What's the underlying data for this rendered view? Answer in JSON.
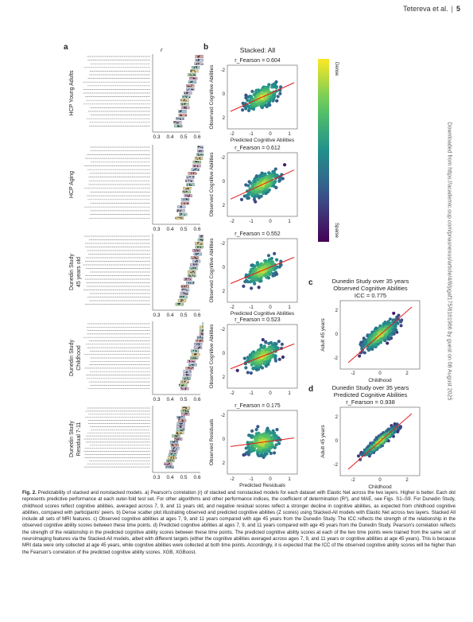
{
  "header": {
    "author": "Tetereva et al.",
    "page": "5"
  },
  "side_note": "Downloaded from https://academic.oup.com/pnasnexus/article/4/8/pgaf175/8161966 by guest on 08 August 2025",
  "panel_labels": {
    "a": "a",
    "b": "b",
    "c": "c",
    "d": "d"
  },
  "panel_a": {
    "xlabel_top": "r_Fearson",
    "ticks": [
      "0.3",
      "0.4",
      "0.5",
      "0.6"
    ],
    "groups": [
      "HCP Young Adults",
      "HCP Aging",
      "Dunedin Study\n45 years old",
      "Dunedin Study\nChildhood",
      "Dunedin Study\nResidual 7-11"
    ]
  },
  "panel_b": {
    "title": "Stacked: All",
    "rows": [
      {
        "stat": "r_Fearson = 0.604",
        "ylabel": "Observed Cognitive Abilities",
        "xlabel": "Predicted Cognitive Abilities"
      },
      {
        "stat": "r_Fearson = 0.612",
        "ylabel": "Observed Cognitive Abilities",
        "xlabel": ""
      },
      {
        "stat": "r_Fearson = 0.552",
        "ylabel": "Observed Cognitive Abilities",
        "xlabel": "Predicted Cognitive Abilities"
      },
      {
        "stat": "r_Fearson = 0.523",
        "ylabel": "Observed Cognitive Abilities",
        "xlabel": ""
      },
      {
        "stat": "r_Fearson = 0.175",
        "ylabel": "Observed Residuals",
        "xlabel": "Predicted Residuals"
      }
    ],
    "colorbar_top": "Dense",
    "colorbar_bottom": "Sparse"
  },
  "panel_c": {
    "title1": "Dunedin Study over 35 years",
    "title2": "Observed Cognitive Abilities",
    "stat": "ICC = 0.775",
    "xlabel": "Childhood",
    "ylabel": "Adult 45 years"
  },
  "panel_d": {
    "title1": "Dunedin Study over 35 years",
    "title2": "Predicted Cognitive Abilities",
    "stat": "r_Fearson = 0.938",
    "xlabel": "Childhood",
    "ylabel": "Adult 45 years"
  },
  "caption": {
    "label": "Fig. 2.",
    "text": "Predictability of stacked and nonstacked models. a) Pearson's correlation (r) of stacked and nonstacked models for each dataset with Elastic Net across the two layers. Higher is better. Each dot represents predictive performance at each outer-fold test set. For other algorithms and other performance indices, the coefficient of determination (R²), and MAE, see Figs. S1–S9. For Dunedin Study, childhood scores reflect cognitive abilities, averaged across 7, 9, and 11 years old, and negative residual scores reflect a stronger decline in cognitive abilities, as expected from childhood cognitive abilities, compared with participants' peers. b) Dense scatter plot illustrating observed and predicted cognitive abilities (Z scores) using Stacked-All models with Elastic Net across two layers. Stacked All include all sets of MRI features. c) Observed cognitive abilities at ages 7, 9, and 11 years compared with age 45 years from the Dunedin Study. The ICC reflects the strength of the relationship in the observed cognitive ability scores between these time points. d) Predicted cognitive abilities at ages 7, 9, and 11 years compared with age 45 years from the Dunedin Study. Pearson's correlation reflects the strength of the relationship in the predicted cognitive ability scores between these time points. The predicted cognitive ability scores at each of the two time points were trained from the same set of neuroimaging features via the Stacked-All models, albeit with different targets (either the cognitive abilities averaged across ages 7, 9, and 11 years or cognitive abilities at age 45 years). This is because MRI data were only collected at age 45 years, while cognitive abilities were collected at both time points. Accordingly, it is expected that the ICC of the observed cognitive ability scores will be higher than the Fearson's correlation of the predicted cognitive ability scores. XGB, XGBoost."
  }
}
